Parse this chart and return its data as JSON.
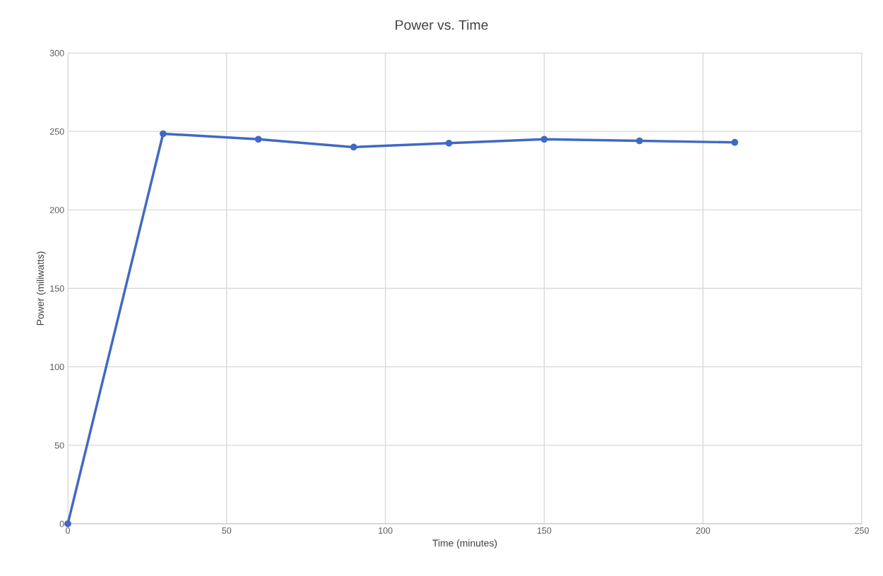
{
  "chart_data": {
    "type": "line",
    "title": "Power vs. Time",
    "xlabel": "Time (minutes)",
    "ylabel": "Power (miliwatts)",
    "x": [
      0,
      30,
      60,
      90,
      120,
      150,
      180,
      210
    ],
    "series": [
      {
        "color": "#4169c4",
        "values": [
          0,
          248.5,
          245,
          240,
          242.5,
          245,
          244,
          243
        ]
      }
    ],
    "xlim": [
      0,
      250
    ],
    "xticks": [
      0,
      50,
      100,
      150,
      200,
      250
    ],
    "ylim": [
      0,
      300
    ],
    "yticks": [
      0,
      50,
      100,
      150,
      200,
      250,
      300
    ],
    "grid": true,
    "marker": "circle",
    "line_style": "solid"
  }
}
